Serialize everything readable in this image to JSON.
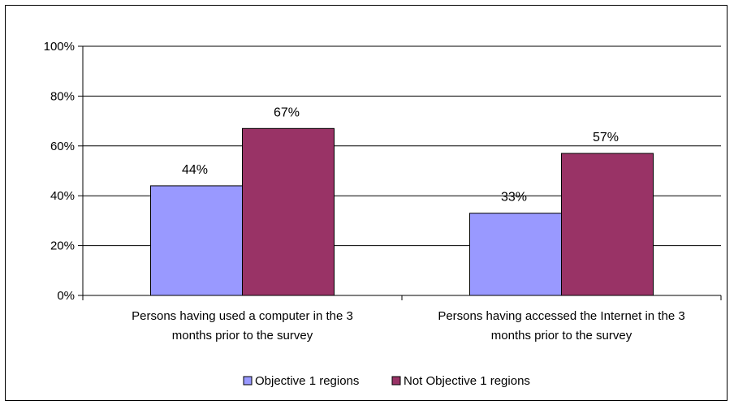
{
  "chart_data": {
    "type": "bar",
    "categories": [
      [
        "Persons having used a computer in the 3",
        "months prior to the survey"
      ],
      [
        "Persons having accessed the Internet in the 3",
        "months prior to the survey"
      ]
    ],
    "series": [
      {
        "name": "Objective 1 regions",
        "values": [
          44,
          33
        ],
        "labels": [
          "44%",
          "33%"
        ],
        "color": "#9999FF"
      },
      {
        "name": "Not Objective 1 regions",
        "values": [
          67,
          57
        ],
        "labels": [
          "67%",
          "57%"
        ],
        "color": "#993366"
      }
    ],
    "ylim": [
      0,
      100
    ],
    "yticks": [
      0,
      20,
      40,
      60,
      80,
      100
    ],
    "ytick_labels": [
      "0%",
      "20%",
      "40%",
      "60%",
      "80%",
      "100%"
    ],
    "grid": true,
    "legend": "bottom-center",
    "title": "",
    "xlabel": "",
    "ylabel": ""
  }
}
